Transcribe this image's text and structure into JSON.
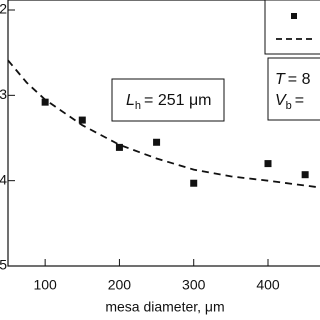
{
  "chart_data": {
    "type": "scatter",
    "x_label": "mesa diameter, μm",
    "xlim": [
      50,
      470
    ],
    "xticks": [
      100,
      200,
      300,
      400
    ],
    "ylim": [
      5,
      2
    ],
    "yticks": [
      2,
      3,
      4,
      5
    ],
    "series": [
      {
        "style": "markers",
        "color": "#111111",
        "x": [
          100,
          150,
          200,
          250,
          300,
          400,
          450
        ],
        "values": [
          3.08,
          3.29,
          3.61,
          3.55,
          4.03,
          3.8,
          3.93
        ]
      },
      {
        "style": "dashed",
        "color": "#111111",
        "x": [
          50,
          75,
          100,
          150,
          200,
          250,
          300,
          350,
          400,
          470
        ],
        "values": [
          2.59,
          2.85,
          3.05,
          3.35,
          3.58,
          3.74,
          3.87,
          3.95,
          4.0,
          4.08
        ]
      }
    ],
    "annotations": [
      {
        "symbol": "L",
        "subscript": "h",
        "text": "= 251 μm"
      },
      {
        "symbol": "T",
        "text": "= 8"
      },
      {
        "symbol": "V",
        "subscript": "b",
        "text": "="
      }
    ]
  }
}
